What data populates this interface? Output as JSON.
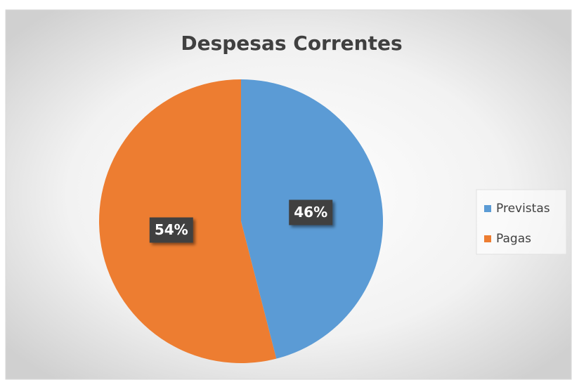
{
  "chart_data": {
    "type": "pie",
    "title": "Despesas Correntes",
    "categories": [
      "Previstas",
      "Pagas"
    ],
    "values": [
      46,
      54
    ],
    "value_labels": [
      "46%",
      "54%"
    ],
    "colors": [
      "#5b9bd5",
      "#ed7d31"
    ],
    "legend": "right"
  }
}
